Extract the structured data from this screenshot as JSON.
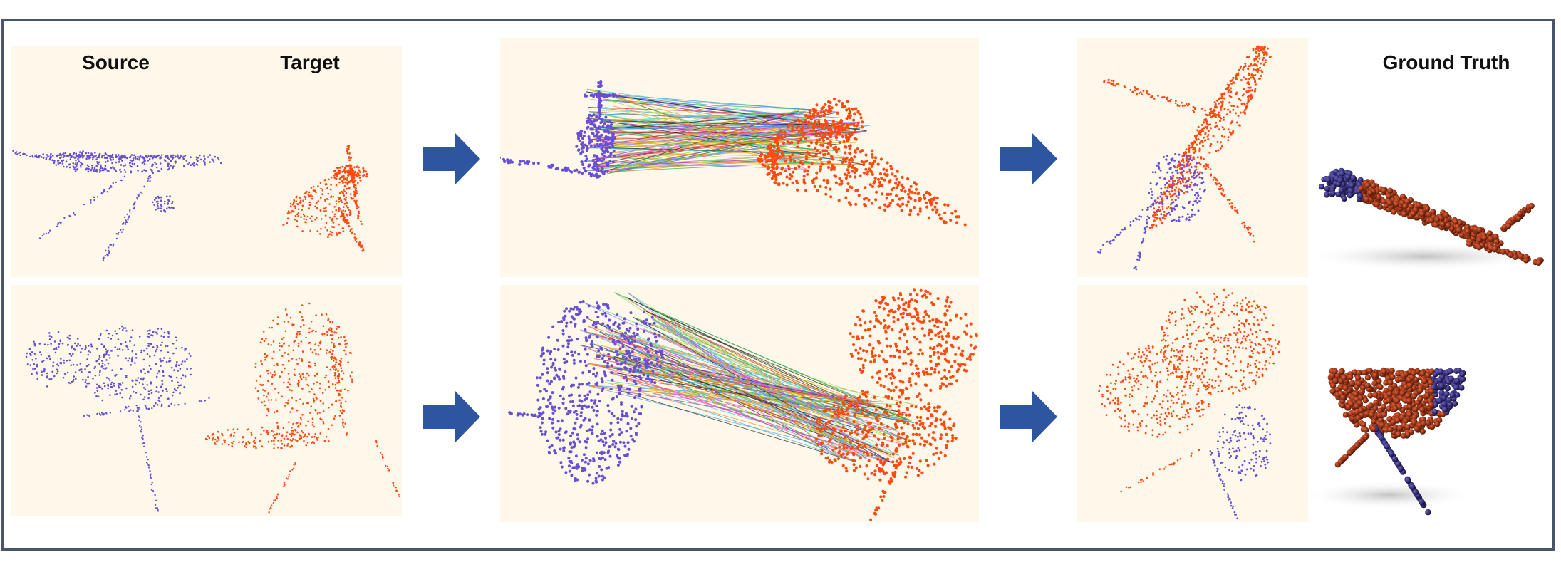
{
  "labels": {
    "source": "Source",
    "target": "Target",
    "ground_truth": "Ground Truth"
  },
  "colors": {
    "source": "#6a4fd6",
    "target": "#ff4a12",
    "arrow": "#2e56a0",
    "panel_bg": "#fdf8ea",
    "frame": "#4a5567",
    "gt_target": "#b83410",
    "gt_source": "#2f2a7a"
  },
  "rows": [
    {
      "name": "airplane"
    },
    {
      "name": "plant"
    }
  ]
}
